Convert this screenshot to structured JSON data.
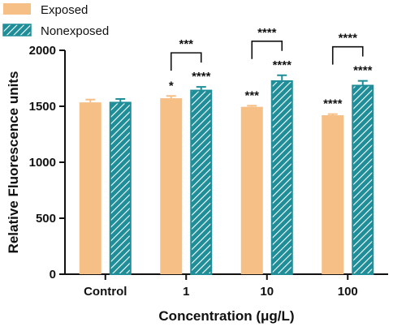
{
  "chart_data": {
    "type": "bar",
    "title": "",
    "xlabel": "Concentration (μg/L)",
    "ylabel": "Relative Fluorescence units",
    "ylim": [
      0,
      2000
    ],
    "yticks": [
      0,
      500,
      1000,
      1500,
      2000
    ],
    "categories": [
      "Control",
      "1",
      "10",
      "100"
    ],
    "series": [
      {
        "name": "Exposed",
        "color": "#F5BF86",
        "pattern": "solid",
        "values": [
          1535,
          1572,
          1495,
          1420
        ],
        "errors": [
          25,
          20,
          10,
          10
        ],
        "significance": [
          "",
          "*",
          "***",
          "****"
        ]
      },
      {
        "name": "Nonexposed",
        "color": "#1F8E99",
        "pattern": "diagonal-hatch",
        "values": [
          1540,
          1648,
          1732,
          1692
        ],
        "errors": [
          25,
          25,
          45,
          35
        ],
        "significance": [
          "",
          "****",
          "****",
          "****"
        ]
      }
    ],
    "comparisons": [
      {
        "category": "1",
        "label": "***"
      },
      {
        "category": "10",
        "label": "****"
      },
      {
        "category": "100",
        "label": "****"
      }
    ],
    "legend": {
      "placement": "top-left"
    }
  }
}
